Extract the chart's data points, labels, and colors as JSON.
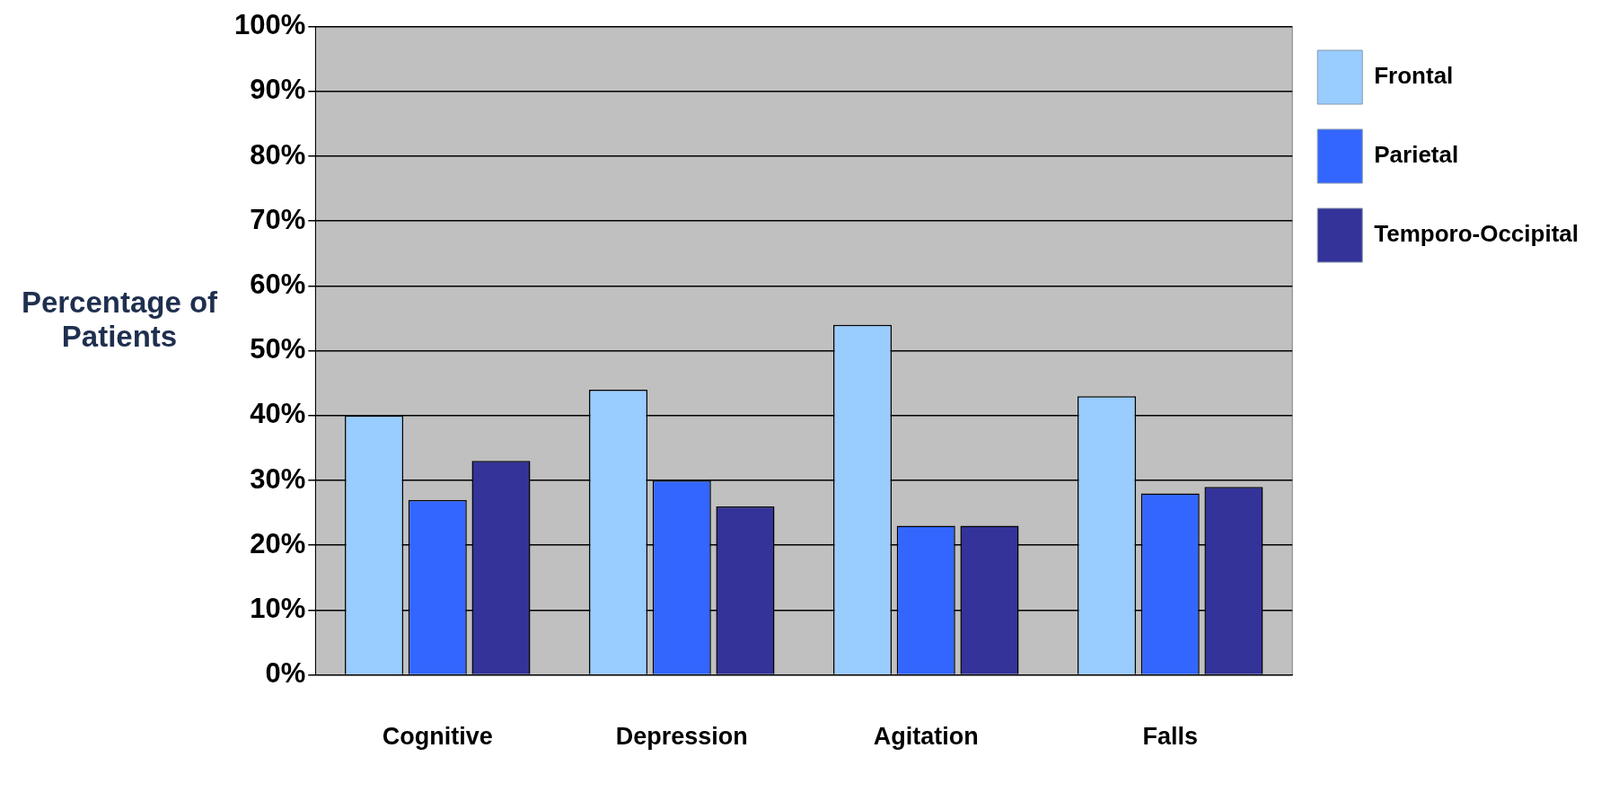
{
  "chart_data": {
    "type": "bar",
    "ylabel": "Percentage of Patients",
    "categories": [
      "Cognitive",
      "Depression",
      "Agitation",
      "Falls"
    ],
    "series": [
      {
        "name": "Frontal",
        "color": "#99ccff",
        "values": [
          40,
          44,
          54,
          43
        ]
      },
      {
        "name": "Parietal",
        "color": "#3366ff",
        "values": [
          27,
          30,
          23,
          28
        ]
      },
      {
        "name": "Temporo-Occipital",
        "color": "#333399",
        "values": [
          33,
          26,
          23,
          29
        ]
      }
    ],
    "ylim": [
      0,
      100
    ],
    "yticks": [
      {
        "value": 0,
        "label": "0%"
      },
      {
        "value": 10,
        "label": "10%"
      },
      {
        "value": 20,
        "label": "20%"
      },
      {
        "value": 30,
        "label": "30%"
      },
      {
        "value": 40,
        "label": "40%"
      },
      {
        "value": 50,
        "label": "50%"
      },
      {
        "value": 60,
        "label": "60%"
      },
      {
        "value": 70,
        "label": "70%"
      },
      {
        "value": 80,
        "label": "80%"
      },
      {
        "value": 90,
        "label": "90%"
      },
      {
        "value": 100,
        "label": "100%"
      }
    ],
    "grid": "y",
    "legend": "top right"
  }
}
